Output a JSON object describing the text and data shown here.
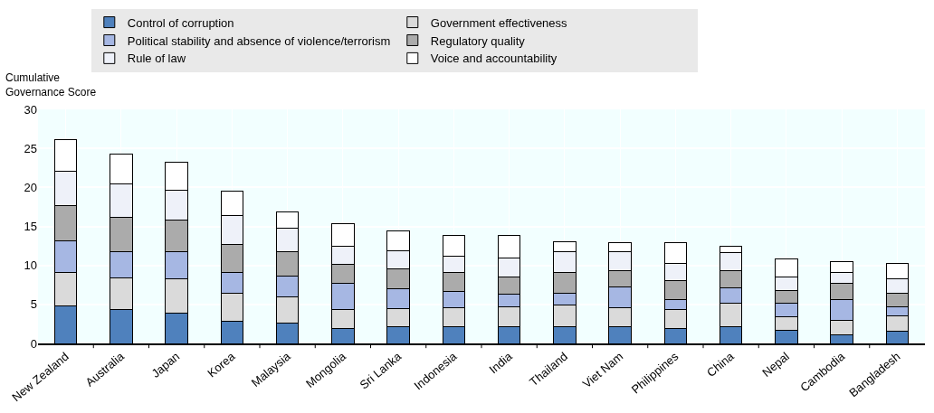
{
  "chart_data": {
    "type": "bar",
    "stacked": true,
    "ylabel": "Cumulative\nGovernance Score",
    "categories": [
      "New Zealand",
      "Australia",
      "Japan",
      "Korea",
      "Malaysia",
      "Mongolia",
      "Sri Lanka",
      "Indonesia",
      "India",
      "Thailand",
      "Viet Nam",
      "Philippines",
      "China",
      "Nepal",
      "Cambodia",
      "Bangladesh"
    ],
    "series": [
      {
        "name": "Control of corruption",
        "color": "#4f81bd",
        "values": [
          4.8,
          4.3,
          3.9,
          2.8,
          2.6,
          1.9,
          2.2,
          2.1,
          2.1,
          2.1,
          2.1,
          1.9,
          2.2,
          1.7,
          1.1,
          1.6
        ]
      },
      {
        "name": "Government effectiveness",
        "color": "#dadada",
        "values": [
          4.3,
          4.1,
          4.4,
          3.6,
          3.4,
          2.4,
          2.3,
          2.5,
          2.6,
          2.8,
          2.5,
          2.5,
          2.9,
          1.7,
          1.9,
          1.9
        ]
      },
      {
        "name": "Political stability and absence of violence/terrorism",
        "color": "#a6b7e3",
        "values": [
          4.0,
          3.4,
          3.5,
          2.7,
          2.6,
          3.4,
          2.5,
          2.1,
          1.6,
          1.5,
          2.6,
          1.2,
          2.0,
          1.7,
          2.6,
          1.2
        ]
      },
      {
        "name": "Regulatory quality",
        "color": "#ababab",
        "values": [
          4.6,
          4.4,
          4.0,
          3.6,
          3.2,
          2.4,
          2.5,
          2.4,
          2.2,
          2.7,
          2.1,
          2.5,
          2.2,
          1.7,
          2.1,
          1.7
        ]
      },
      {
        "name": "Rule of law",
        "color": "#eef1f9",
        "values": [
          4.4,
          4.2,
          3.8,
          3.7,
          3.0,
          2.3,
          2.4,
          2.1,
          2.4,
          2.6,
          2.5,
          2.2,
          2.3,
          1.7,
          1.4,
          1.9
        ]
      },
      {
        "name": "Voice and accountability",
        "color": "#ffffff",
        "values": [
          4.0,
          3.9,
          3.6,
          3.1,
          2.1,
          3.0,
          2.5,
          2.7,
          2.9,
          1.3,
          1.1,
          2.6,
          0.9,
          2.3,
          1.4,
          2.0
        ]
      }
    ],
    "ylim": [
      0,
      30
    ],
    "yticks": [
      0,
      5,
      10,
      15,
      20,
      25,
      30
    ],
    "grid": true,
    "legend": "top"
  }
}
